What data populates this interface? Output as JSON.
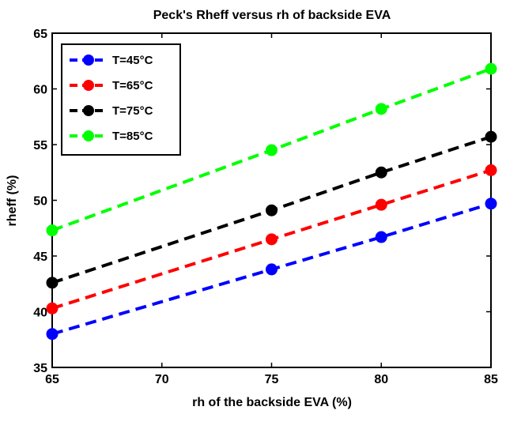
{
  "chart_data": {
    "type": "line",
    "title": "Peck's Rheff versus rh of backside EVA",
    "xlabel": "rh of the backside EVA (%)",
    "ylabel": "rheff (%)",
    "xlim": [
      65,
      85
    ],
    "ylim": [
      35,
      65
    ],
    "xticks": [
      65,
      70,
      75,
      80,
      85
    ],
    "yticks": [
      35,
      40,
      45,
      50,
      55,
      60,
      65
    ],
    "grid": false,
    "legend_position": "top-left",
    "x": [
      65,
      75,
      80,
      85
    ],
    "series": [
      {
        "name": "T=45°C",
        "color": "#0000ff",
        "values": [
          38.0,
          43.8,
          46.7,
          49.7
        ]
      },
      {
        "name": "T=65°C",
        "color": "#ff0000",
        "values": [
          40.3,
          46.5,
          49.6,
          52.7
        ]
      },
      {
        "name": "T=75°C",
        "color": "#000000",
        "values": [
          42.6,
          49.1,
          52.5,
          55.7
        ]
      },
      {
        "name": "T=85°C",
        "color": "#00ff00",
        "values": [
          47.3,
          54.5,
          58.2,
          61.8
        ]
      }
    ]
  }
}
